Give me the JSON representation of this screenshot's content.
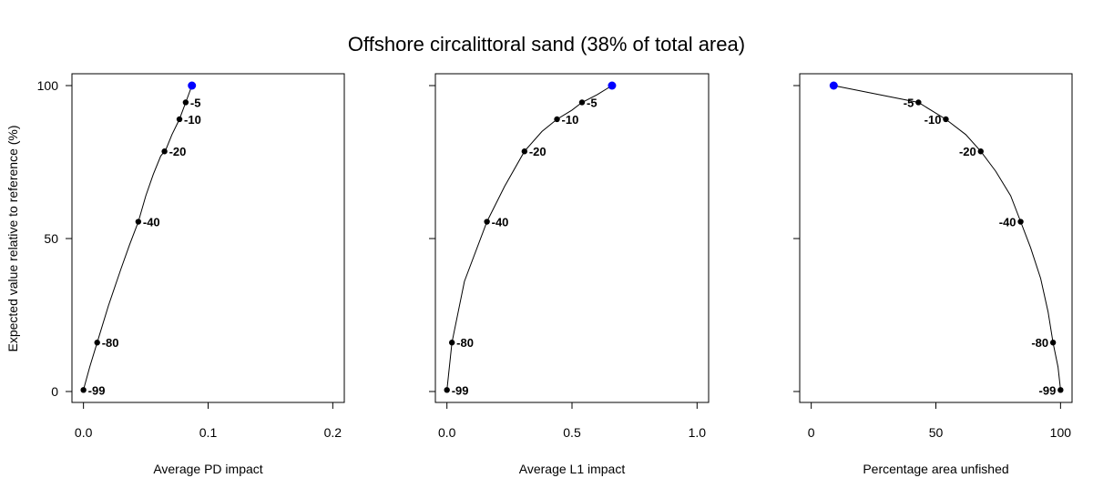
{
  "chart_data": {
    "type": "line",
    "title": "Offshore circalittoral sand (38% of total area)",
    "ylabel": "Expected value relative to reference (%)",
    "ylim": [
      0,
      100
    ],
    "yticks": [
      0,
      50,
      100
    ],
    "highlight_color": "#0000ff",
    "point_color": "#000000",
    "panels": [
      {
        "xlabel": "Average PD impact",
        "xlim": [
          0,
          0.2
        ],
        "xticks": [
          0.0,
          0.1,
          0.2
        ],
        "xtick_labels": [
          "0.0",
          "0.1",
          "0.2"
        ],
        "label_side": "right",
        "curve": {
          "x": [
            0,
            0.005,
            0.011,
            0.02,
            0.03,
            0.037,
            0.044,
            0.05,
            0.056,
            0.062,
            0.066,
            0.071,
            0.077,
            0.082,
            0.087
          ],
          "y": [
            0.5,
            8,
            16,
            28,
            40,
            48,
            55.5,
            64,
            71,
            77,
            79,
            84,
            89,
            94.5,
            100
          ]
        },
        "points": [
          {
            "x": 0.0,
            "y": 0.5,
            "label": "-99"
          },
          {
            "x": 0.011,
            "y": 16,
            "label": "-80"
          },
          {
            "x": 0.044,
            "y": 55.5,
            "label": "-40"
          },
          {
            "x": 0.065,
            "y": 78.5,
            "label": "-20"
          },
          {
            "x": 0.077,
            "y": 89,
            "label": "-10"
          },
          {
            "x": 0.082,
            "y": 94.5,
            "label": "-5"
          }
        ],
        "highlight": {
          "x": 0.087,
          "y": 100
        }
      },
      {
        "xlabel": "Average L1 impact",
        "xlim": [
          0,
          1.0
        ],
        "xticks": [
          0.0,
          0.5,
          1.0
        ],
        "xtick_labels": [
          "0.0",
          "0.5",
          "1.0"
        ],
        "label_side": "right",
        "curve": {
          "x": [
            0,
            0.02,
            0.07,
            0.16,
            0.23,
            0.31,
            0.38,
            0.44,
            0.5,
            0.54,
            0.6,
            0.66
          ],
          "y": [
            0.5,
            16,
            36,
            55.5,
            67,
            78.5,
            85,
            89,
            92,
            94.5,
            97,
            100
          ]
        },
        "points": [
          {
            "x": 0.0,
            "y": 0.5,
            "label": "-99"
          },
          {
            "x": 0.02,
            "y": 16,
            "label": "-80"
          },
          {
            "x": 0.16,
            "y": 55.5,
            "label": "-40"
          },
          {
            "x": 0.31,
            "y": 78.5,
            "label": "-20"
          },
          {
            "x": 0.44,
            "y": 89,
            "label": "-10"
          },
          {
            "x": 0.54,
            "y": 94.5,
            "label": "-5"
          }
        ],
        "highlight": {
          "x": 0.66,
          "y": 100
        }
      },
      {
        "xlabel": "Percentage area unfished",
        "xlim": [
          0,
          100
        ],
        "xticks": [
          0,
          50,
          100
        ],
        "xtick_labels": [
          "0",
          "50",
          "100"
        ],
        "label_side": "left",
        "curve": {
          "x": [
            9,
            43,
            54,
            62,
            68,
            74,
            80,
            84,
            88,
            92,
            95,
            97,
            99,
            100
          ],
          "y": [
            100,
            94.5,
            89,
            84,
            78.5,
            72,
            64,
            55.5,
            47,
            37,
            26,
            16,
            8,
            0.5
          ]
        },
        "points": [
          {
            "x": 100,
            "y": 0.5,
            "label": "-99"
          },
          {
            "x": 97,
            "y": 16,
            "label": "-80"
          },
          {
            "x": 84,
            "y": 55.5,
            "label": "-40"
          },
          {
            "x": 68,
            "y": 78.5,
            "label": "-20"
          },
          {
            "x": 54,
            "y": 89,
            "label": "-10"
          },
          {
            "x": 43,
            "y": 94.5,
            "label": "-5"
          }
        ],
        "highlight": {
          "x": 9,
          "y": 100
        }
      }
    ]
  }
}
